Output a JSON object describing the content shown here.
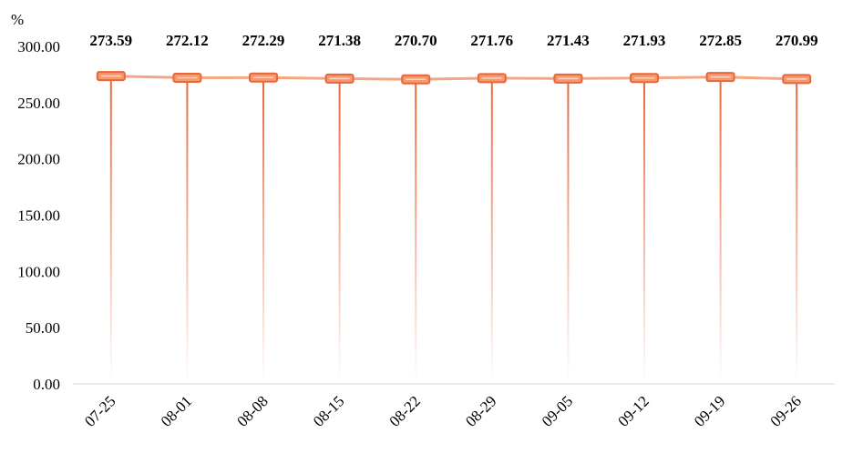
{
  "chart_data": {
    "type": "line",
    "unit_label": "%",
    "categories": [
      "07-25",
      "08-01",
      "08-08",
      "08-15",
      "08-22",
      "08-29",
      "09-05",
      "09-12",
      "09-19",
      "09-26"
    ],
    "values": [
      273.59,
      272.12,
      272.29,
      271.38,
      270.7,
      271.76,
      271.43,
      271.93,
      272.85,
      270.99
    ],
    "data_labels": [
      "273.59",
      "272.12",
      "272.29",
      "271.38",
      "270.70",
      "271.76",
      "271.43",
      "271.93",
      "272.85",
      "270.99"
    ],
    "yticks": [
      "0.00",
      "50.00",
      "100.00",
      "150.00",
      "200.00",
      "250.00",
      "300.00"
    ],
    "ylim": [
      0,
      300
    ],
    "title": "",
    "xlabel": "",
    "ylabel": "",
    "grid": false,
    "legend": "none",
    "line_color": "#f4a582",
    "marker_fill": "#f59a6e",
    "marker_stroke": "#e8663a",
    "drop_line_color": "#e8663a",
    "axis_color": "#d9d9d9"
  }
}
